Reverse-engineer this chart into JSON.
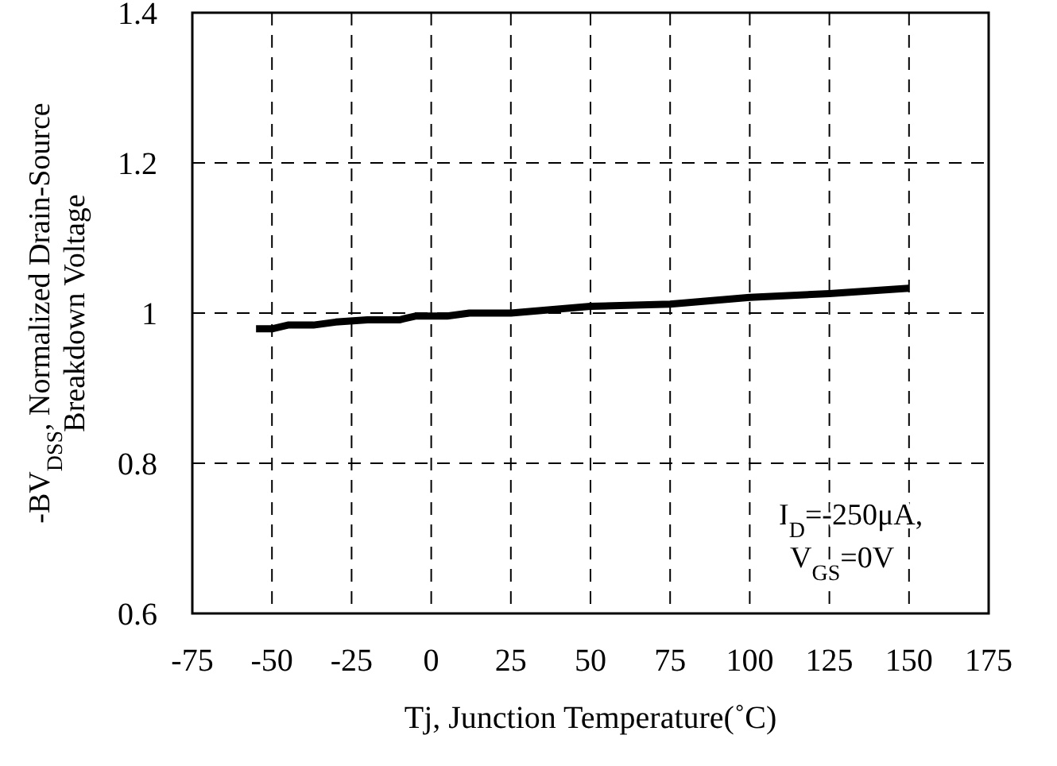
{
  "chart_data": {
    "type": "line",
    "xlabel": "Tj, Junction Temperature(˚C)",
    "ylabel": "-BV$_{DSS}$, Normalized Drain-Source Breakdown Voltage",
    "x": [
      -55,
      -50,
      -45,
      -37,
      -30,
      -20,
      -10,
      -5,
      5,
      12,
      25,
      50,
      75,
      100,
      125,
      150
    ],
    "series": [
      {
        "color": "#000000",
        "values": [
          0.979,
          0.979,
          0.984,
          0.984,
          0.988,
          0.991,
          0.991,
          0.996,
          0.996,
          1.0,
          1.0,
          1.009,
          1.012,
          1.021,
          1.026,
          1.033
        ]
      }
    ],
    "xlim": [
      -75,
      175
    ],
    "xticks": [
      -75,
      -50,
      -25,
      0,
      25,
      50,
      75,
      100,
      125,
      150,
      175
    ],
    "ylim": [
      0.6,
      1.4
    ],
    "yticks": [
      {
        "value": 0.6,
        "label": "0.6"
      },
      {
        "value": 0.8,
        "label": "0.8"
      },
      {
        "value": 1,
        "label": "1"
      },
      {
        "value": 1.2,
        "label": "1.2"
      },
      {
        "value": 1.4,
        "label": "1.4"
      }
    ],
    "grid": true,
    "line_style": "solid",
    "marker": "none",
    "annotations": [
      "I$_{D}$=-250μA,",
      "V$_{GS}$=0V"
    ]
  }
}
